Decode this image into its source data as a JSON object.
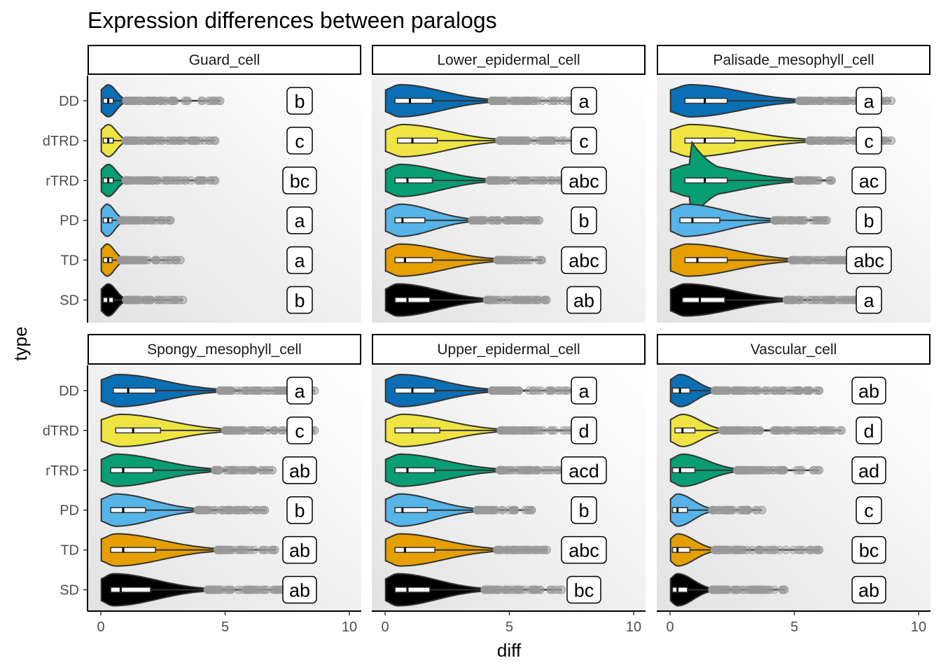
{
  "chart_data": {
    "type": "violin",
    "title": "Expression differences between paralogs",
    "xlabel": "diff",
    "ylabel": "type",
    "xlim": [
      0,
      10
    ],
    "x_ticks": [
      0,
      5,
      10
    ],
    "categories": [
      "DD",
      "dTRD",
      "rTRD",
      "PD",
      "TD",
      "SD"
    ],
    "category_colors": {
      "DD": "#0a6fb4",
      "dTRD": "#f0e442",
      "rTRD": "#079e73",
      "PD": "#56b4e9",
      "TD": "#e69f00",
      "SD": "#000000"
    },
    "outlier_color": "#999999",
    "grid": false,
    "panels": [
      {
        "name": "Guard_cell",
        "groups": [
          {
            "type": "DD",
            "q1": 0.1,
            "median": 0.3,
            "q3": 0.5,
            "whisker_max": 1.0,
            "max": 4.8,
            "density_peak": 0.3,
            "letter": "b"
          },
          {
            "type": "dTRD",
            "q1": 0.1,
            "median": 0.3,
            "q3": 0.5,
            "whisker_max": 1.0,
            "max": 4.6,
            "density_peak": 0.3,
            "letter": "c"
          },
          {
            "type": "rTRD",
            "q1": 0.1,
            "median": 0.3,
            "q3": 0.5,
            "whisker_max": 1.0,
            "max": 4.6,
            "density_peak": 0.3,
            "letter": "bc"
          },
          {
            "type": "PD",
            "q1": 0.1,
            "median": 0.3,
            "q3": 0.45,
            "whisker_max": 0.8,
            "max": 2.8,
            "density_peak": 0.25,
            "letter": "a"
          },
          {
            "type": "TD",
            "q1": 0.1,
            "median": 0.3,
            "q3": 0.45,
            "whisker_max": 0.8,
            "max": 3.2,
            "density_peak": 0.25,
            "letter": "a"
          },
          {
            "type": "SD",
            "q1": 0.1,
            "median": 0.3,
            "q3": 0.5,
            "whisker_max": 1.0,
            "max": 3.3,
            "density_peak": 0.3,
            "letter": "b"
          }
        ]
      },
      {
        "name": "Lower_epidermal_cell",
        "groups": [
          {
            "type": "DD",
            "q1": 0.4,
            "median": 1.0,
            "q3": 1.9,
            "whisker_max": 4.3,
            "max": 7.6,
            "density_peak": 0.6,
            "letter": "a"
          },
          {
            "type": "dTRD",
            "q1": 0.5,
            "median": 1.1,
            "q3": 2.1,
            "whisker_max": 4.6,
            "max": 7.8,
            "density_peak": 0.7,
            "letter": "c"
          },
          {
            "type": "rTRD",
            "q1": 0.4,
            "median": 0.9,
            "q3": 1.9,
            "whisker_max": 4.2,
            "max": 7.4,
            "density_peak": 0.6,
            "letter": "abc"
          },
          {
            "type": "PD",
            "q1": 0.4,
            "median": 0.7,
            "q3": 1.6,
            "whisker_max": 3.5,
            "max": 6.2,
            "density_peak": 0.6,
            "letter": "b"
          },
          {
            "type": "TD",
            "q1": 0.4,
            "median": 0.8,
            "q3": 1.9,
            "whisker_max": 4.5,
            "max": 6.3,
            "density_peak": 0.6,
            "letter": "abc"
          },
          {
            "type": "SD",
            "q1": 0.4,
            "median": 0.9,
            "q3": 1.8,
            "whisker_max": 4.1,
            "max": 6.5,
            "density_peak": 0.5,
            "letter": "ab"
          }
        ]
      },
      {
        "name": "Palisade_mesophyll_cell",
        "groups": [
          {
            "type": "DD",
            "q1": 0.6,
            "median": 1.4,
            "q3": 2.3,
            "whisker_max": 5.2,
            "max": 8.9,
            "density_peak": 0.8,
            "letter": "a"
          },
          {
            "type": "dTRD",
            "q1": 0.6,
            "median": 1.4,
            "q3": 2.6,
            "whisker_max": 5.6,
            "max": 8.9,
            "density_peak": 0.8,
            "letter": "c"
          },
          {
            "type": "rTRD",
            "q1": 0.6,
            "median": 1.4,
            "q3": 2.3,
            "whisker_max": 5.1,
            "max": 6.5,
            "density_peak": 0.8,
            "letter": "ac"
          },
          {
            "type": "PD",
            "q1": 0.4,
            "median": 0.9,
            "q3": 2.0,
            "whisker_max": 4.2,
            "max": 6.3,
            "density_peak": 0.6,
            "letter": "b"
          },
          {
            "type": "TD",
            "q1": 0.6,
            "median": 1.1,
            "q3": 2.3,
            "whisker_max": 4.9,
            "max": 7.3,
            "density_peak": 0.7,
            "letter": "abc"
          },
          {
            "type": "SD",
            "q1": 0.5,
            "median": 1.2,
            "q3": 2.2,
            "whisker_max": 4.7,
            "max": 7.6,
            "density_peak": 0.6,
            "letter": "a"
          }
        ]
      },
      {
        "name": "Spongy_mesophyll_cell",
        "groups": [
          {
            "type": "DD",
            "q1": 0.5,
            "median": 1.1,
            "q3": 2.2,
            "whisker_max": 4.8,
            "max": 8.6,
            "density_peak": 0.7,
            "letter": "a"
          },
          {
            "type": "dTRD",
            "q1": 0.6,
            "median": 1.3,
            "q3": 2.4,
            "whisker_max": 5.0,
            "max": 8.6,
            "density_peak": 0.8,
            "letter": "c"
          },
          {
            "type": "rTRD",
            "q1": 0.4,
            "median": 0.9,
            "q3": 2.1,
            "whisker_max": 4.6,
            "max": 6.9,
            "density_peak": 0.6,
            "letter": "ab"
          },
          {
            "type": "PD",
            "q1": 0.4,
            "median": 0.9,
            "q3": 1.8,
            "whisker_max": 3.9,
            "max": 6.6,
            "density_peak": 0.6,
            "letter": "b"
          },
          {
            "type": "TD",
            "q1": 0.4,
            "median": 0.9,
            "q3": 2.2,
            "whisker_max": 4.7,
            "max": 7.0,
            "density_peak": 0.6,
            "letter": "ab"
          },
          {
            "type": "SD",
            "q1": 0.4,
            "median": 0.8,
            "q3": 2.0,
            "whisker_max": 4.3,
            "max": 7.4,
            "density_peak": 0.5,
            "letter": "ab"
          }
        ]
      },
      {
        "name": "Upper_epidermal_cell",
        "groups": [
          {
            "type": "DD",
            "q1": 0.4,
            "median": 1.1,
            "q3": 2.0,
            "whisker_max": 4.3,
            "max": 7.7,
            "density_peak": 0.6,
            "letter": "a"
          },
          {
            "type": "dTRD",
            "q1": 0.4,
            "median": 1.1,
            "q3": 2.2,
            "whisker_max": 4.6,
            "max": 7.8,
            "density_peak": 0.7,
            "letter": "d"
          },
          {
            "type": "rTRD",
            "q1": 0.4,
            "median": 0.9,
            "q3": 2.0,
            "whisker_max": 4.6,
            "max": 7.3,
            "density_peak": 0.6,
            "letter": "acd"
          },
          {
            "type": "PD",
            "q1": 0.4,
            "median": 0.7,
            "q3": 1.7,
            "whisker_max": 3.7,
            "max": 5.9,
            "density_peak": 0.6,
            "letter": "b"
          },
          {
            "type": "TD",
            "q1": 0.4,
            "median": 0.8,
            "q3": 2.0,
            "whisker_max": 4.5,
            "max": 6.5,
            "density_peak": 0.6,
            "letter": "abc"
          },
          {
            "type": "SD",
            "q1": 0.4,
            "median": 0.9,
            "q3": 1.8,
            "whisker_max": 4.0,
            "max": 7.1,
            "density_peak": 0.5,
            "letter": "bc"
          }
        ]
      },
      {
        "name": "Vascular_cell",
        "groups": [
          {
            "type": "DD",
            "q1": 0.1,
            "median": 0.4,
            "q3": 0.8,
            "whisker_max": 1.8,
            "max": 6.0,
            "density_peak": 0.4,
            "letter": "ab"
          },
          {
            "type": "dTRD",
            "q1": 0.2,
            "median": 0.5,
            "q3": 1.0,
            "whisker_max": 2.1,
            "max": 6.9,
            "density_peak": 0.5,
            "letter": "d"
          },
          {
            "type": "rTRD",
            "q1": 0.1,
            "median": 0.4,
            "q3": 1.0,
            "whisker_max": 2.7,
            "max": 6.0,
            "density_peak": 0.5,
            "letter": "ad"
          },
          {
            "type": "PD",
            "q1": 0.1,
            "median": 0.3,
            "q3": 0.7,
            "whisker_max": 1.7,
            "max": 3.7,
            "density_peak": 0.3,
            "letter": "c"
          },
          {
            "type": "TD",
            "q1": 0.1,
            "median": 0.3,
            "q3": 0.8,
            "whisker_max": 1.8,
            "max": 6.0,
            "density_peak": 0.3,
            "letter": "bc"
          },
          {
            "type": "SD",
            "q1": 0.1,
            "median": 0.3,
            "q3": 0.7,
            "whisker_max": 1.7,
            "max": 4.6,
            "density_peak": 0.3,
            "letter": "ab"
          }
        ]
      }
    ]
  }
}
